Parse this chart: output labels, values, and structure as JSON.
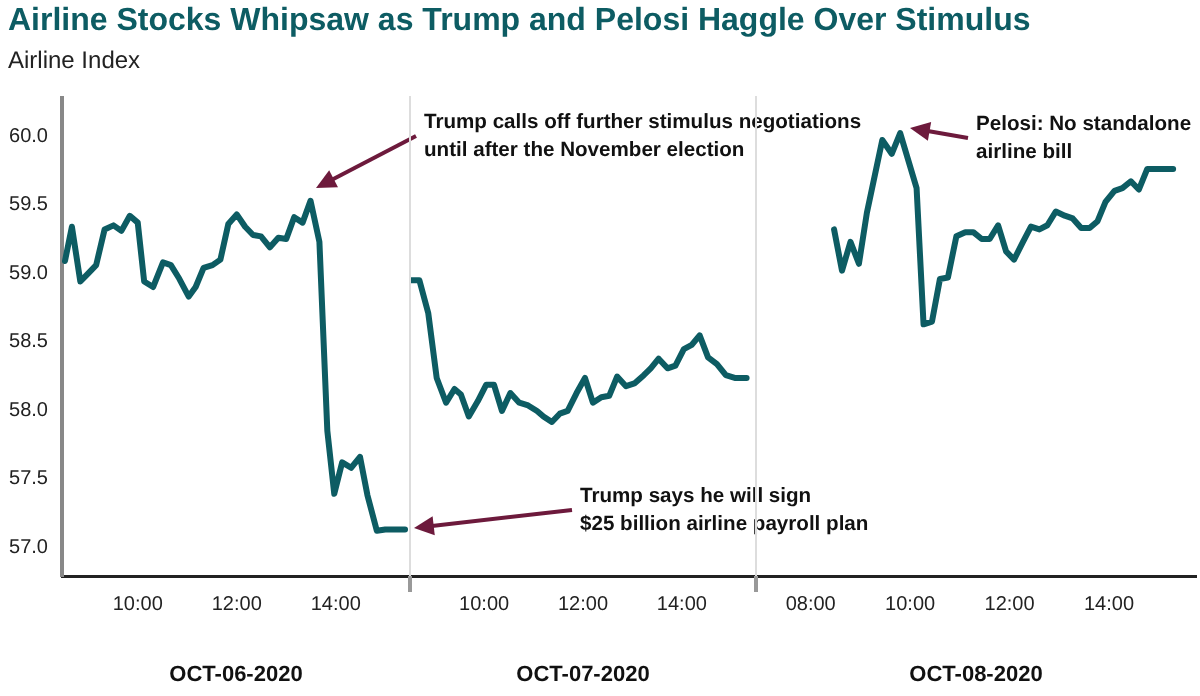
{
  "chart_data": [
    {
      "type": "line",
      "title": "Airline Stocks Whipsaw as Trump and Pelosi Haggle Over Stimulus",
      "subtitle": "Airline Index",
      "xlabel": "OCT-06-2020",
      "xlim": [
        8.47,
        15.5
      ],
      "ylim": [
        56.79,
        60.28
      ],
      "xticks": [
        {
          "value": 10,
          "label": "10:00"
        },
        {
          "value": 12,
          "label": "12:00"
        },
        {
          "value": 14,
          "label": "14:00"
        }
      ],
      "yticks": [
        {
          "value": 57,
          "label": "57.0"
        },
        {
          "value": 57.5,
          "label": "57.5"
        },
        {
          "value": 58,
          "label": "58.0"
        },
        {
          "value": 58.5,
          "label": "58.5"
        },
        {
          "value": 59,
          "label": "59.0"
        },
        {
          "value": 59.5,
          "label": "59.5"
        },
        {
          "value": 60,
          "label": "60.0"
        }
      ],
      "grid": false,
      "legend": false,
      "marker": "none",
      "line_style": "solid",
      "series": [
        {
          "color": "#0d5c63",
          "x": [
            8.53,
            8.67,
            8.84,
            9.0,
            9.16,
            9.33,
            9.51,
            9.67,
            9.84,
            10.0,
            10.13,
            10.31,
            10.51,
            10.67,
            10.84,
            11.03,
            11.17,
            11.33,
            11.51,
            11.67,
            11.83,
            12.0,
            12.17,
            12.33,
            12.49,
            12.67,
            12.84,
            13.0,
            13.16,
            13.33,
            13.49,
            13.67,
            13.83,
            13.97,
            14.13,
            14.31,
            14.49,
            14.64,
            14.83,
            15.0,
            15.4
          ],
          "values": [
            59.09,
            59.34,
            58.94,
            59.0,
            59.06,
            59.32,
            59.35,
            59.31,
            59.42,
            59.37,
            58.94,
            58.9,
            59.08,
            59.06,
            58.96,
            58.83,
            58.9,
            59.04,
            59.06,
            59.1,
            59.36,
            59.43,
            59.34,
            59.28,
            59.27,
            59.19,
            59.26,
            59.25,
            59.41,
            59.37,
            59.53,
            59.23,
            57.85,
            57.39,
            57.62,
            57.58,
            57.66,
            57.38,
            57.12,
            57.13,
            57.13
          ]
        }
      ],
      "annotations": [
        "Trump calls off further stimulus negotiations\nuntil after the November election",
        "Trump says he will sign\n$25 billion airline payroll plan"
      ]
    },
    {
      "type": "line",
      "xlabel": "OCT-07-2020",
      "tick_labels": "x",
      "xlim": [
        8.5,
        15.5
      ],
      "ylim": [
        56.79,
        60.28
      ],
      "xticks": [
        {
          "value": 10,
          "label": "10:00"
        },
        {
          "value": 12,
          "label": "12:00"
        },
        {
          "value": 14,
          "label": "14:00"
        }
      ],
      "grid": false,
      "legend": false,
      "marker": "none",
      "line_style": "solid",
      "series": [
        {
          "color": "#0d5c63",
          "x": [
            8.51,
            8.69,
            8.87,
            9.04,
            9.23,
            9.4,
            9.53,
            9.69,
            9.87,
            10.04,
            10.2,
            10.36,
            10.53,
            10.71,
            10.89,
            11.07,
            11.2,
            11.37,
            11.53,
            11.69,
            11.87,
            12.04,
            12.2,
            12.37,
            12.53,
            12.69,
            12.87,
            13.04,
            13.23,
            13.37,
            13.53,
            13.71,
            13.87,
            14.04,
            14.2,
            14.36,
            14.53,
            14.71,
            14.89,
            15.07,
            15.31
          ],
          "values": [
            58.94,
            58.94,
            58.7,
            58.23,
            58.05,
            58.15,
            58.11,
            57.95,
            58.06,
            58.18,
            58.18,
            57.99,
            58.12,
            58.05,
            58.03,
            57.99,
            57.95,
            57.91,
            57.97,
            57.99,
            58.12,
            58.23,
            58.05,
            58.09,
            58.1,
            58.24,
            58.17,
            58.19,
            58.25,
            58.3,
            58.37,
            58.3,
            58.32,
            58.44,
            58.47,
            58.54,
            58.38,
            58.33,
            58.25,
            58.23,
            58.23
          ]
        }
      ]
    },
    {
      "type": "line",
      "xlabel": "OCT-08-2020",
      "tick_labels": "x",
      "xlim": [
        6.9,
        15.75
      ],
      "ylim": [
        56.79,
        60.28
      ],
      "xticks": [
        {
          "value": 8,
          "label": "08:00"
        },
        {
          "value": 10,
          "label": "10:00"
        },
        {
          "value": 12,
          "label": "12:00"
        },
        {
          "value": 14,
          "label": "14:00"
        }
      ],
      "grid": false,
      "legend": false,
      "marker": "none",
      "line_style": "solid",
      "series": [
        {
          "color": "#0d5c63",
          "x": [
            8.47,
            8.63,
            8.8,
            8.97,
            9.13,
            9.44,
            9.63,
            9.8,
            10.13,
            10.27,
            10.44,
            10.6,
            10.76,
            10.93,
            11.11,
            11.27,
            11.44,
            11.6,
            11.77,
            11.93,
            12.09,
            12.27,
            12.43,
            12.6,
            12.76,
            12.93,
            13.11,
            13.27,
            13.44,
            13.61,
            13.77,
            13.93,
            14.11,
            14.27,
            14.44,
            14.6,
            14.77,
            14.93,
            15.29
          ],
          "values": [
            59.31,
            59.01,
            59.22,
            59.06,
            59.43,
            59.96,
            59.86,
            60.01,
            59.61,
            58.62,
            58.64,
            58.95,
            58.96,
            59.26,
            59.29,
            59.29,
            59.24,
            59.24,
            59.34,
            59.15,
            59.09,
            59.22,
            59.33,
            59.31,
            59.34,
            59.44,
            59.41,
            59.39,
            59.32,
            59.32,
            59.37,
            59.51,
            59.59,
            59.61,
            59.66,
            59.6,
            59.75,
            59.75,
            59.75
          ]
        }
      ],
      "annotations": [
        "Pelosi: No standalone\nairline bill"
      ]
    }
  ]
}
